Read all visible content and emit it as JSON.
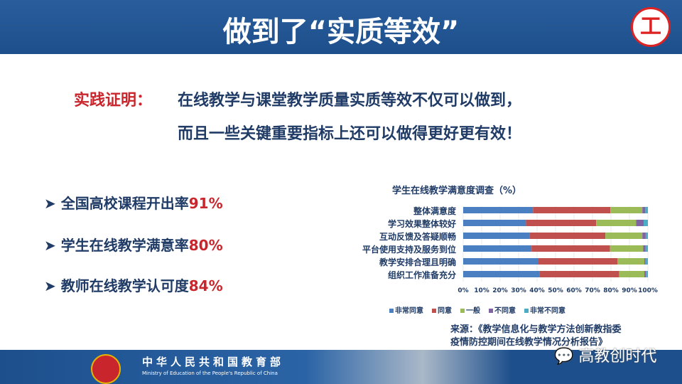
{
  "header": {
    "title": "做到了“实质等效”",
    "logo_text": "工"
  },
  "claim": {
    "lead": "实践证明：",
    "line1": "在线教学与课堂教学质量实质等效不仅可以做到，",
    "line2": "而且一些关键重要指标上还可以做得更好更有效！"
  },
  "bullets": [
    {
      "label": "全国高校课程开出率",
      "value": "91%"
    },
    {
      "label": "学生在线教学满意率",
      "value": "80%"
    },
    {
      "label": "教师在线教学认可度",
      "value": "84%"
    }
  ],
  "chart_data": {
    "type": "bar",
    "orientation": "horizontal",
    "stacked": true,
    "title": "学生在线教学满意度调查（%）",
    "categories": [
      "整体满意度",
      "学习效果整体较好",
      "互动反馈及答疑顺畅",
      "平台使用支持及服务到位",
      "教学安排合理且明确",
      "组织工作准备充分"
    ],
    "series": [
      {
        "name": "非常同意",
        "color": "#4a7fc1",
        "values": [
          37.8,
          34,
          36,
          37,
          40.4,
          41.2
        ]
      },
      {
        "name": "同意",
        "color": "#c0504d",
        "values": [
          41.9,
          38,
          41,
          42.5,
          43.2,
          43.2
        ]
      },
      {
        "name": "一般",
        "color": "#9bbb59",
        "values": [
          17.3,
          21.6,
          20,
          17.9,
          14.5,
          13.7
        ]
      },
      {
        "name": "不同意",
        "color": "#8064a2",
        "values": [
          1.6,
          4.1,
          1.8,
          1.3,
          0.6,
          0.8
        ]
      },
      {
        "name": "非常不同意",
        "color": "#4bacc6",
        "values": [
          1.4,
          2.3,
          1.2,
          1.3,
          1.3,
          1.1
        ]
      }
    ],
    "xticks": [
      "0%",
      "10%",
      "20%",
      "30%",
      "40%",
      "50%",
      "60%",
      "70%",
      "80%",
      "90%",
      "100%"
    ],
    "xlim": [
      0,
      100
    ],
    "legend": "bottom"
  },
  "source": {
    "line1": "来源：《教学信息化与教学方法创新教指委",
    "line2": "疫情防控期间在线教学情况分析报告》"
  },
  "footer": {
    "cn": "中华人民共和国教育部",
    "en": "Ministry of Education of the People's Republic of China",
    "watermark": "高教创时代"
  }
}
